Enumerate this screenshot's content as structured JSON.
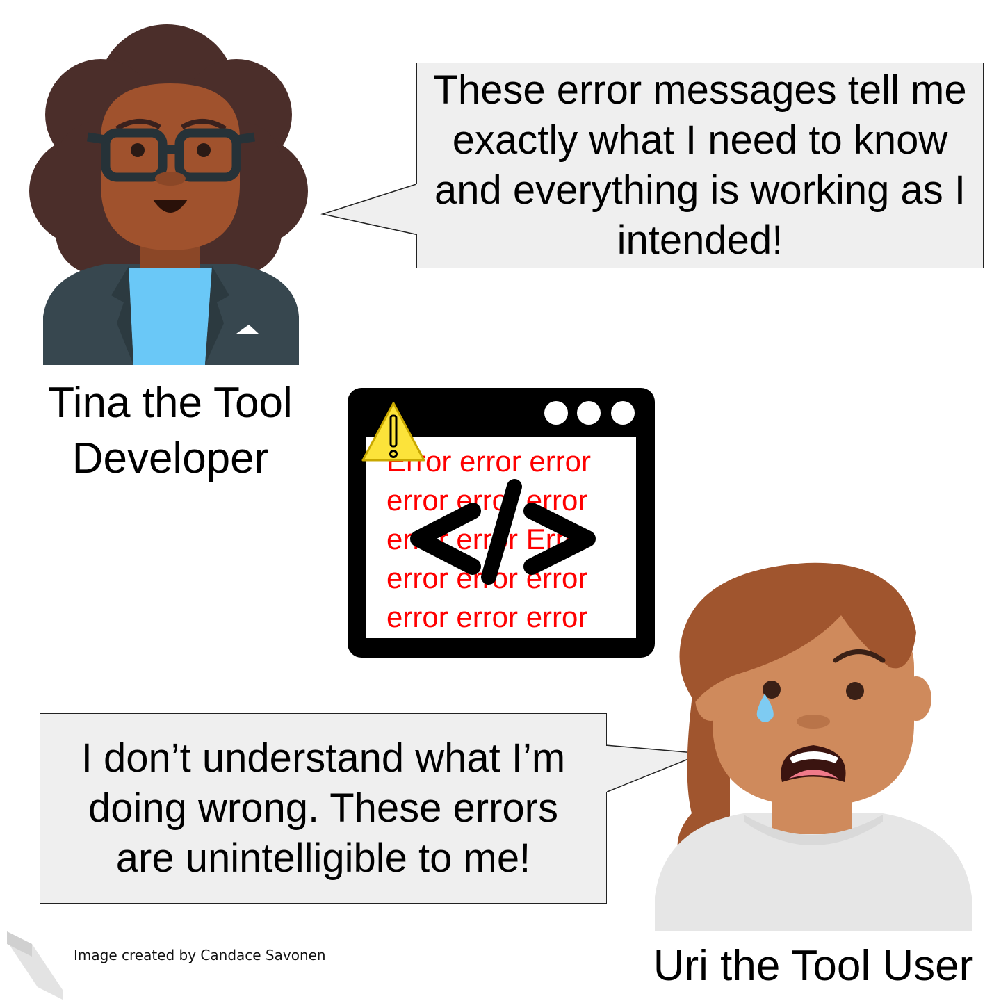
{
  "developer": {
    "name_line1": "Tina the Tool",
    "name_line2": "Developer",
    "speech": [
      "These error messages tell me",
      "exactly what I need to know",
      "and everything is working as I",
      "intended!"
    ]
  },
  "user": {
    "name": "Uri the Tool User",
    "speech": [
      "I don’t understand what I’m",
      "doing wrong. These errors",
      "are unintelligible to me!"
    ]
  },
  "error_window": {
    "lines": [
      "Error error error",
      "error error error",
      "error error Error",
      "error error error",
      "error error error"
    ],
    "code_symbol": "</>",
    "warning_symbol": "!"
  },
  "credit": "Image created by Candace Savonen",
  "colors": {
    "error_text": "#ff0000",
    "bubble_fill": "#efefef",
    "warning_yellow": "#fce33a",
    "dev_hair": "#4b2e2a",
    "dev_skin": "#a0522d",
    "dev_jacket": "#37474f",
    "dev_shirt": "#6ac8f7",
    "user_hair": "#a0552e",
    "user_skin": "#cf8a5c",
    "user_shirt": "#e6e6e6"
  }
}
